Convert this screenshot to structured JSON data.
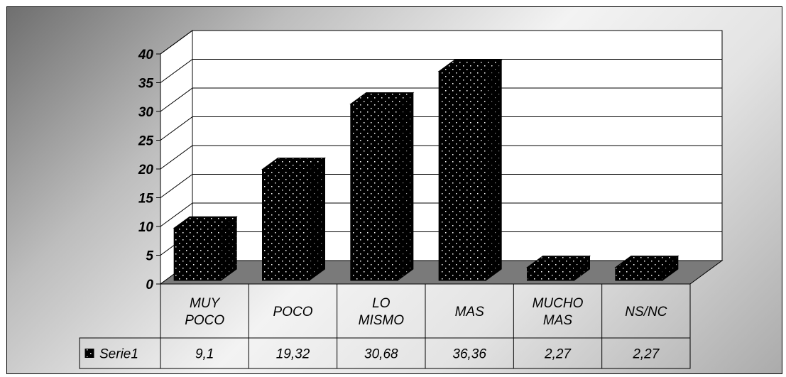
{
  "chart_data": {
    "type": "bar",
    "style": "3d-column",
    "categories": [
      [
        "MUY",
        "POCO"
      ],
      [
        "POCO"
      ],
      [
        "LO",
        "MISMO"
      ],
      [
        "MAS"
      ],
      [
        "MUCHO",
        "MAS"
      ],
      [
        "NS/NC"
      ]
    ],
    "series": [
      {
        "name": "Serie1",
        "values": [
          9.1,
          19.32,
          30.68,
          36.36,
          2.27,
          2.27
        ]
      }
    ],
    "value_labels": [
      "9,1",
      "19,32",
      "30,68",
      "36,36",
      "2,27",
      "2,27"
    ],
    "y_ticks": [
      "0",
      "5",
      "10",
      "15",
      "20",
      "25",
      "30",
      "35",
      "40"
    ],
    "ylim": [
      0,
      40
    ],
    "grid": true,
    "legend": "data-table",
    "colors": {
      "bar": "#000000",
      "bar_dots": "#ffffff",
      "floor": "#7a7a7a",
      "plot_wall": "#ffffff"
    }
  }
}
